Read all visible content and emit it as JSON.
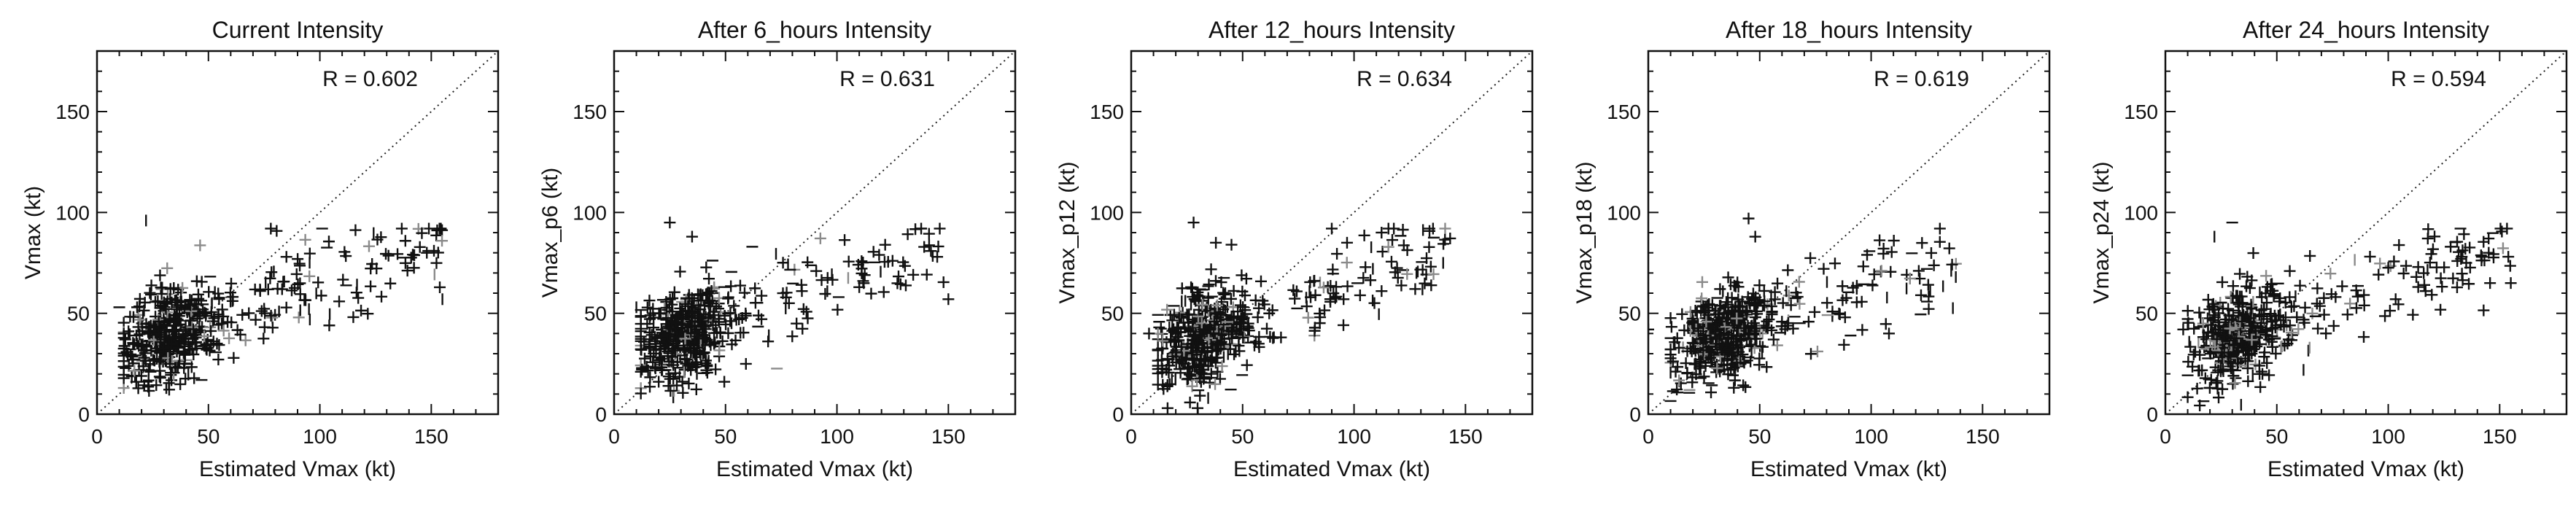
{
  "chart_data": [
    {
      "type": "scatter",
      "title": "Current Intensity",
      "xlabel": "Estimated Vmax (kt)",
      "ylabel": "Vmax (kt)",
      "xlim": [
        0,
        180
      ],
      "ylim": [
        0,
        180
      ],
      "xticks": [
        0,
        50,
        100,
        150
      ],
      "yticks": [
        0,
        50,
        100,
        150
      ],
      "annotation": "R = 0.602",
      "reference_line": "1:1 dotted diagonal",
      "marker": "+",
      "seed": 11,
      "points_summary": {
        "n": 520,
        "slope": 0.38,
        "intercept": 27,
        "noise": 11,
        "x_min": 12,
        "x_max": 155,
        "x_mode": 32
      },
      "highlight_points": [
        [
          22,
          96
        ],
        [
          18,
          53
        ],
        [
          78,
          92
        ],
        [
          155,
          57
        ],
        [
          148,
          80
        ],
        [
          85,
          78
        ],
        [
          10,
          53
        ]
      ]
    },
    {
      "type": "scatter",
      "title": "After 6_hours Intensity",
      "xlabel": "Estimated Vmax (kt)",
      "ylabel": "Vmax_p6 (kt)",
      "xlim": [
        0,
        180
      ],
      "ylim": [
        0,
        180
      ],
      "xticks": [
        0,
        50,
        100,
        150
      ],
      "yticks": [
        0,
        50,
        100,
        150
      ],
      "annotation": "R = 0.631",
      "reference_line": "1:1 dotted diagonal",
      "marker": "+",
      "seed": 23,
      "points_summary": {
        "n": 520,
        "slope": 0.4,
        "intercept": 26,
        "noise": 11,
        "x_min": 12,
        "x_max": 148,
        "x_mode": 32
      },
      "highlight_points": [
        [
          25,
          95
        ],
        [
          10,
          53
        ],
        [
          62,
          83
        ],
        [
          150,
          57
        ],
        [
          145,
          78
        ],
        [
          35,
          88
        ]
      ]
    },
    {
      "type": "scatter",
      "title": "After 12_hours Intensity",
      "xlabel": "Estimated Vmax (kt)",
      "ylabel": "Vmax_p12 (kt)",
      "xlim": [
        0,
        180
      ],
      "ylim": [
        0,
        180
      ],
      "xticks": [
        0,
        50,
        100,
        150
      ],
      "yticks": [
        0,
        50,
        100,
        150
      ],
      "annotation": "R = 0.634",
      "reference_line": "1:1 dotted diagonal",
      "marker": "+",
      "seed": 37,
      "points_summary": {
        "n": 520,
        "slope": 0.41,
        "intercept": 25,
        "noise": 11,
        "x_min": 12,
        "x_max": 145,
        "x_mode": 32
      },
      "highlight_points": [
        [
          28,
          95
        ],
        [
          38,
          85
        ],
        [
          45,
          84
        ],
        [
          140,
          75
        ],
        [
          128,
          70
        ],
        [
          8,
          40
        ]
      ]
    },
    {
      "type": "scatter",
      "title": "After 18_hours Intensity",
      "xlabel": "Estimated Vmax (kt)",
      "ylabel": "Vmax_p18 (kt)",
      "xlim": [
        0,
        180
      ],
      "ylim": [
        0,
        180
      ],
      "xticks": [
        0,
        50,
        100,
        150
      ],
      "yticks": [
        0,
        50,
        100,
        150
      ],
      "annotation": "R = 0.619",
      "reference_line": "1:1 dotted diagonal",
      "marker": "+",
      "seed": 53,
      "points_summary": {
        "n": 520,
        "slope": 0.4,
        "intercept": 26,
        "noise": 11,
        "x_min": 10,
        "x_max": 140,
        "x_mode": 33
      },
      "highlight_points": [
        [
          45,
          97
        ],
        [
          48,
          88
        ],
        [
          138,
          68
        ],
        [
          125,
          72
        ],
        [
          0,
          42
        ],
        [
          108,
          40
        ]
      ]
    },
    {
      "type": "scatter",
      "title": "After 24_hours Intensity",
      "xlabel": "Estimated Vmax (kt)",
      "ylabel": "Vmax_p24 (kt)",
      "xlim": [
        0,
        180
      ],
      "ylim": [
        0,
        180
      ],
      "xticks": [
        0,
        50,
        100,
        150
      ],
      "yticks": [
        0,
        50,
        100,
        150
      ],
      "annotation": "R = 0.594",
      "reference_line": "1:1 dotted diagonal",
      "marker": "+",
      "seed": 71,
      "points_summary": {
        "n": 520,
        "slope": 0.38,
        "intercept": 27,
        "noise": 11,
        "x_min": 10,
        "x_max": 155,
        "x_mode": 33
      },
      "highlight_points": [
        [
          30,
          95
        ],
        [
          22,
          88
        ],
        [
          155,
          65
        ],
        [
          135,
          75
        ],
        [
          128,
          83
        ],
        [
          8,
          42
        ]
      ]
    }
  ]
}
